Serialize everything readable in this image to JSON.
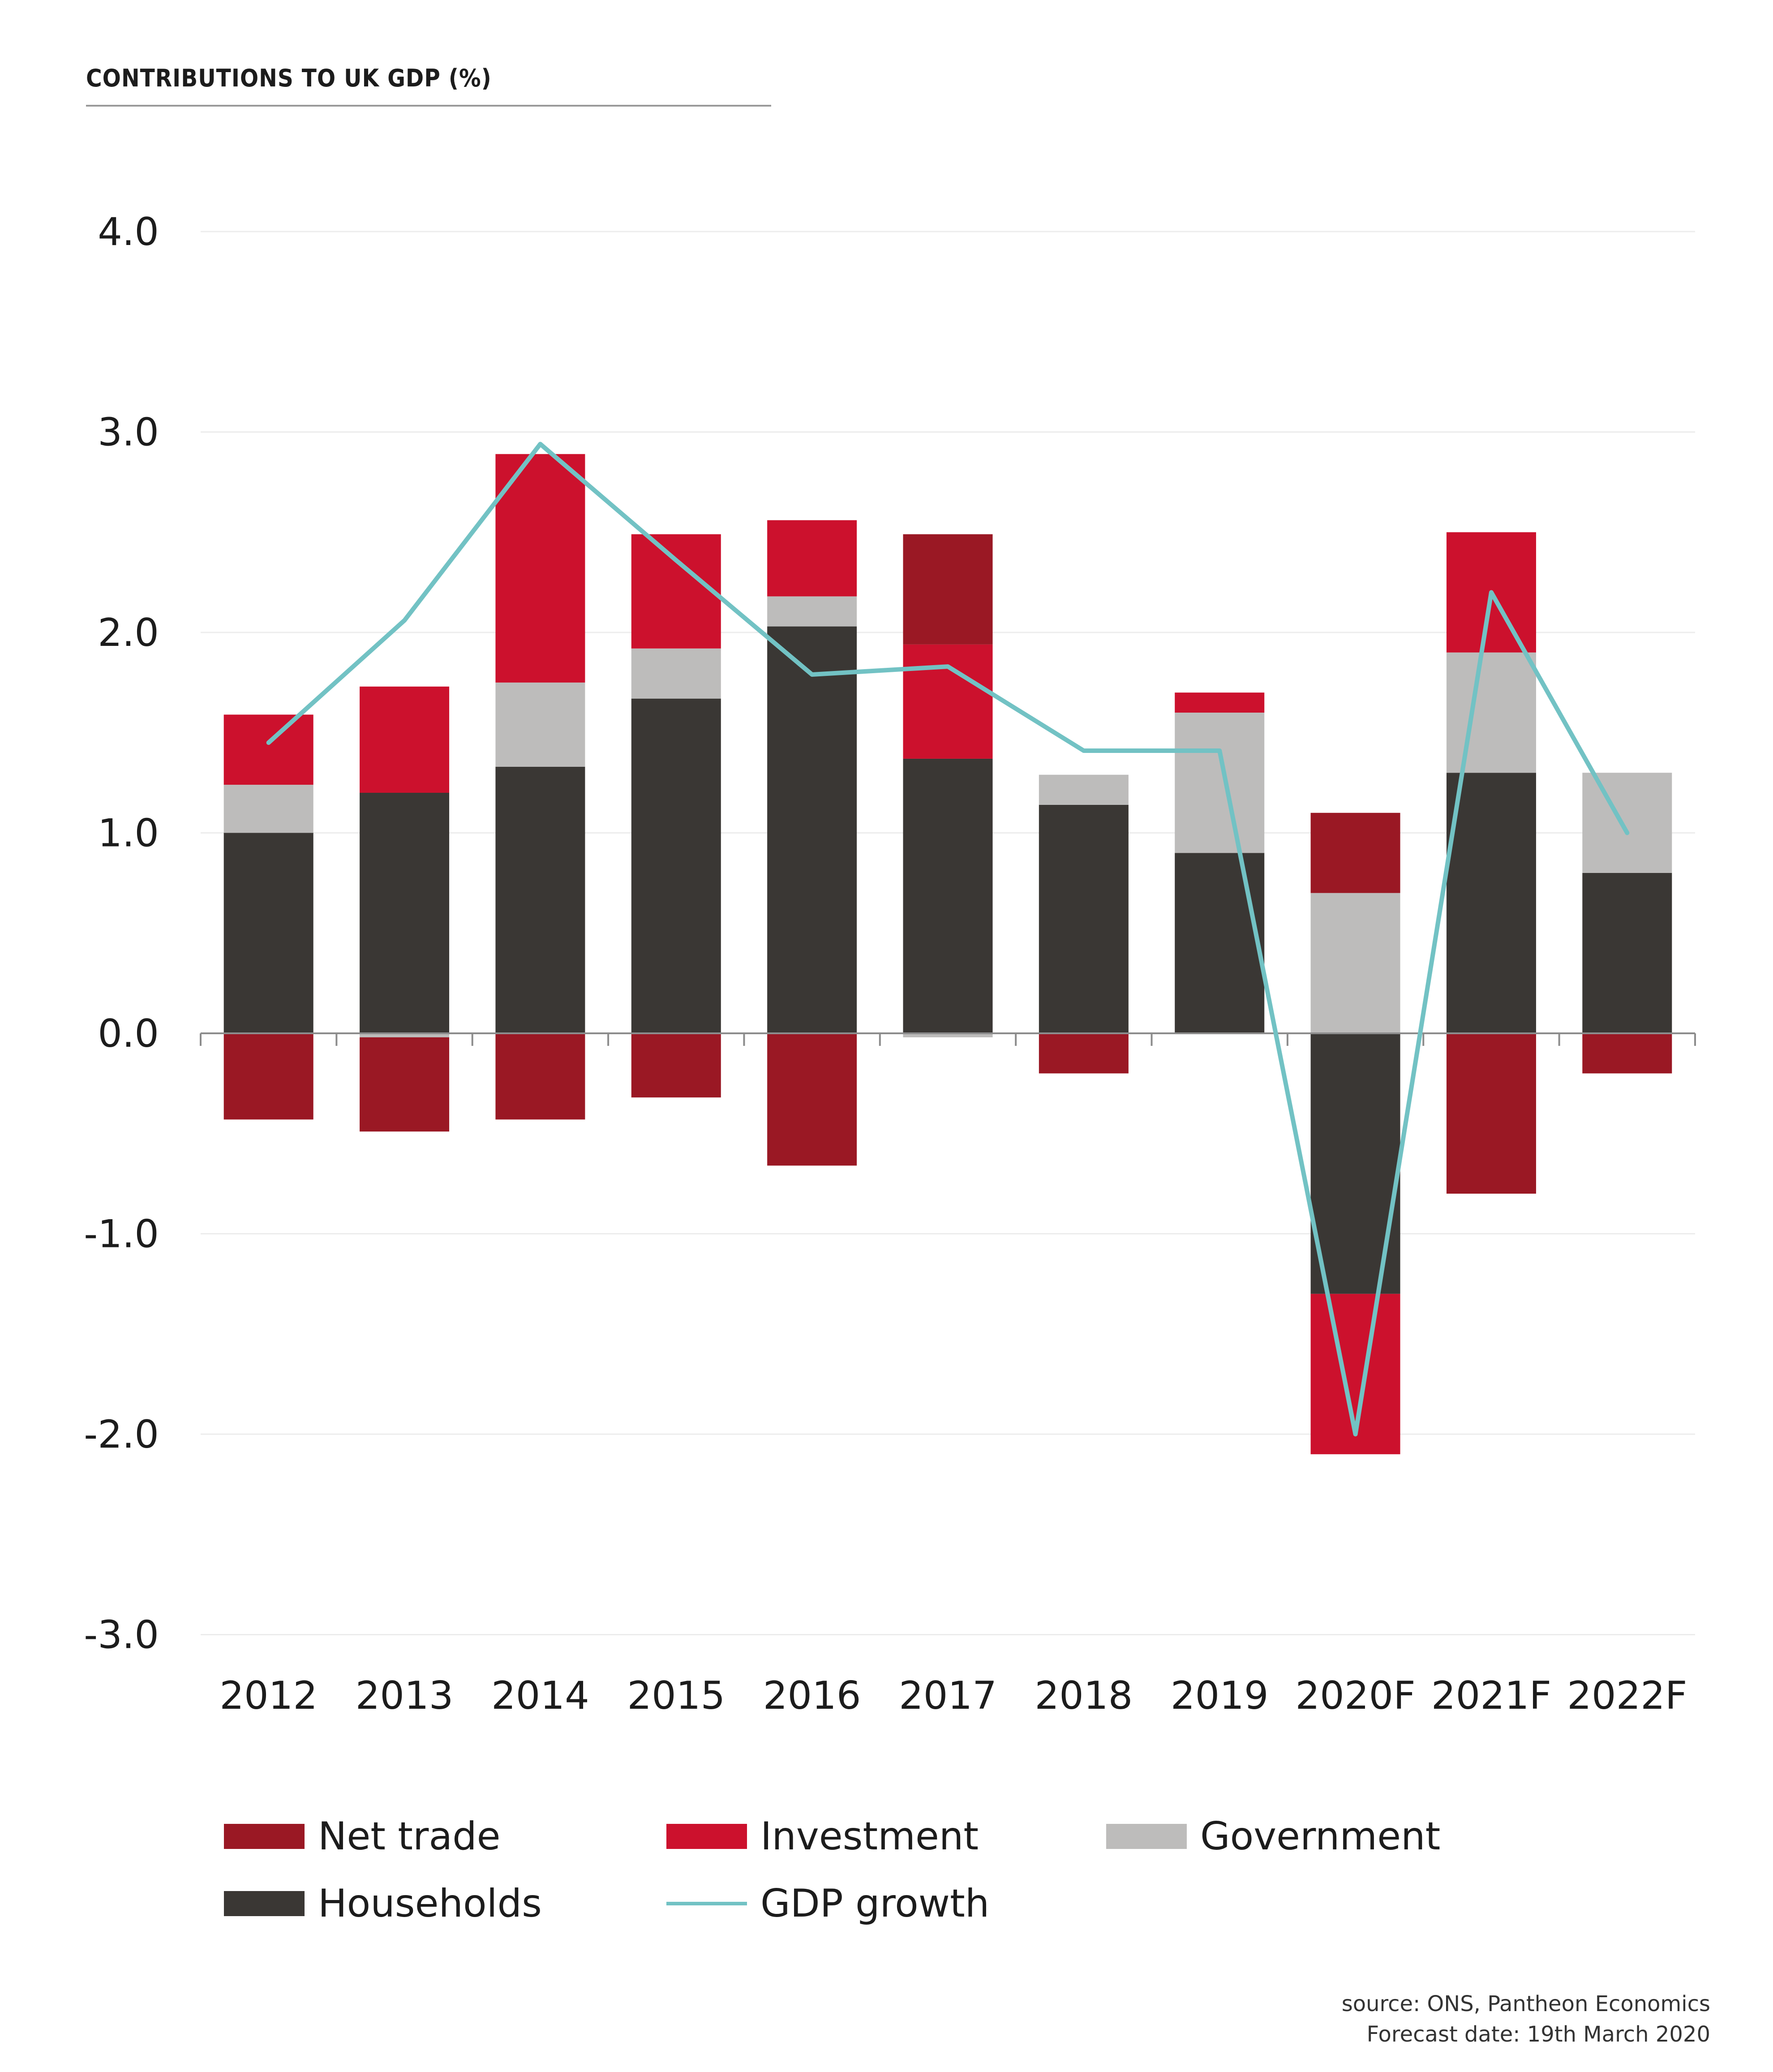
{
  "chart_data": {
    "type": "bar",
    "stacked": true,
    "title": "CONTRIBUTIONS TO UK GDP (%)",
    "categories": [
      "2012",
      "2013",
      "2014",
      "2015",
      "2016",
      "2017",
      "2018",
      "2019",
      "2020F",
      "2021F",
      "2022F"
    ],
    "ylim": [
      -3.0,
      4.0
    ],
    "yticks": [
      "4.0",
      "3.0",
      "2.0",
      "1.0",
      "0.0",
      "-1.0",
      "-2.0",
      "-3.0"
    ],
    "ytick_values": [
      4,
      3,
      2,
      1,
      0,
      -1,
      -2,
      -3
    ],
    "grid": true,
    "series": [
      {
        "name": "Households",
        "color": "#3a3734",
        "values": [
          1.0,
          1.2,
          1.33,
          1.67,
          2.03,
          1.37,
          1.14,
          0.9,
          -1.3,
          1.3,
          0.8
        ]
      },
      {
        "name": "Government",
        "color": "#bdbcbb",
        "values": [
          0.24,
          -0.02,
          0.42,
          0.25,
          0.15,
          -0.02,
          0.15,
          0.7,
          0.7,
          0.6,
          0.5
        ]
      },
      {
        "name": "Investment",
        "color": "#cc112d",
        "values": [
          0.35,
          0.53,
          1.14,
          0.57,
          0.38,
          0.57,
          0.0,
          0.1,
          -0.8,
          0.6,
          0.0
        ]
      },
      {
        "name": "Net trade",
        "color": "#9a1824",
        "values": [
          -0.43,
          -0.47,
          -0.43,
          -0.32,
          -0.66,
          0.55,
          -0.2,
          0.0,
          0.4,
          -0.8,
          -0.2
        ]
      }
    ],
    "line": {
      "name": "GDP growth",
      "color": "#72c2c4",
      "values": [
        1.45,
        2.06,
        2.94,
        2.36,
        1.79,
        1.83,
        1.41,
        1.41,
        -2.0,
        2.2,
        1.0
      ]
    },
    "legend": [
      {
        "label": "Net trade",
        "color": "#9a1824",
        "kind": "box"
      },
      {
        "label": "Investment",
        "color": "#cc112d",
        "kind": "box"
      },
      {
        "label": "Government",
        "color": "#bdbcbb",
        "kind": "box"
      },
      {
        "label": "Households",
        "color": "#3a3734",
        "kind": "box"
      },
      {
        "label": "GDP growth",
        "color": "#72c2c4",
        "kind": "line"
      }
    ],
    "source": [
      "source: ONS, Pantheon Economics",
      "Forecast date: 19th March 2020"
    ]
  }
}
